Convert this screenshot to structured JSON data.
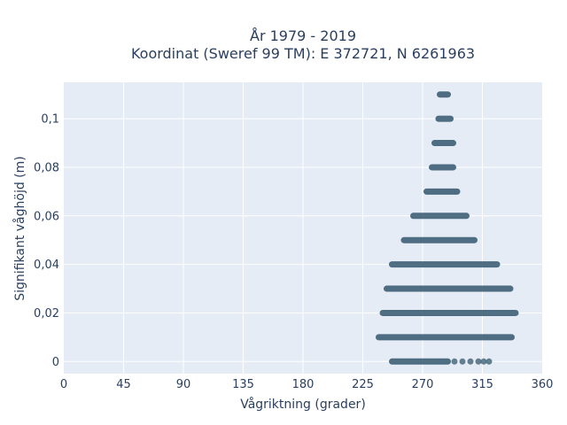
{
  "chart_data": {
    "type": "scatter",
    "title": "År 1979 - 2019",
    "subtitle": "Koordinat (Sweref 99 TM): E 372721, N 6261963",
    "xlabel": "Vågriktning (grader)",
    "ylabel": "Signifikant våghöjd (m)",
    "xlim": [
      0,
      360
    ],
    "ylim": [
      -0.005,
      0.115
    ],
    "x_ticks": [
      0,
      45,
      90,
      135,
      180,
      225,
      270,
      315,
      360
    ],
    "x_tick_labels": [
      "0",
      "45",
      "90",
      "135",
      "180",
      "225",
      "270",
      "315",
      "360"
    ],
    "y_ticks": [
      0,
      0.02,
      0.04,
      0.06,
      0.08,
      0.1
    ],
    "y_tick_labels": [
      "0",
      "0,02",
      "0,04",
      "0,06",
      "0,08",
      "0,1"
    ],
    "grid": true,
    "marker_color": "#34586e",
    "plot_background": "#e5ecf6",
    "series": [
      {
        "points": [
          {
            "x_range": [
              247,
              289
            ],
            "y": 0
          },
          {
            "x": 294,
            "y": 0
          },
          {
            "x": 300,
            "y": 0
          },
          {
            "x": 306,
            "y": 0
          },
          {
            "x": 312,
            "y": 0
          },
          {
            "x": 316,
            "y": 0
          },
          {
            "x": 320,
            "y": 0
          },
          {
            "x_range": [
              237,
              337
            ],
            "y": 0.01
          },
          {
            "x_range": [
              240,
              340
            ],
            "y": 0.02
          },
          {
            "x_range": [
              243,
              336
            ],
            "y": 0.03
          },
          {
            "x_range": [
              247,
              326
            ],
            "y": 0.04
          },
          {
            "x_range": [
              256,
              309
            ],
            "y": 0.05
          },
          {
            "x_range": [
              263,
              303
            ],
            "y": 0.06
          },
          {
            "x_range": [
              273,
              296
            ],
            "y": 0.07
          },
          {
            "x_range": [
              277,
              293
            ],
            "y": 0.08
          },
          {
            "x_range": [
              279,
              293
            ],
            "y": 0.09
          },
          {
            "x_range": [
              282,
              291
            ],
            "y": 0.1
          },
          {
            "x_range": [
              283,
              289
            ],
            "y": 0.11
          }
        ]
      }
    ]
  }
}
